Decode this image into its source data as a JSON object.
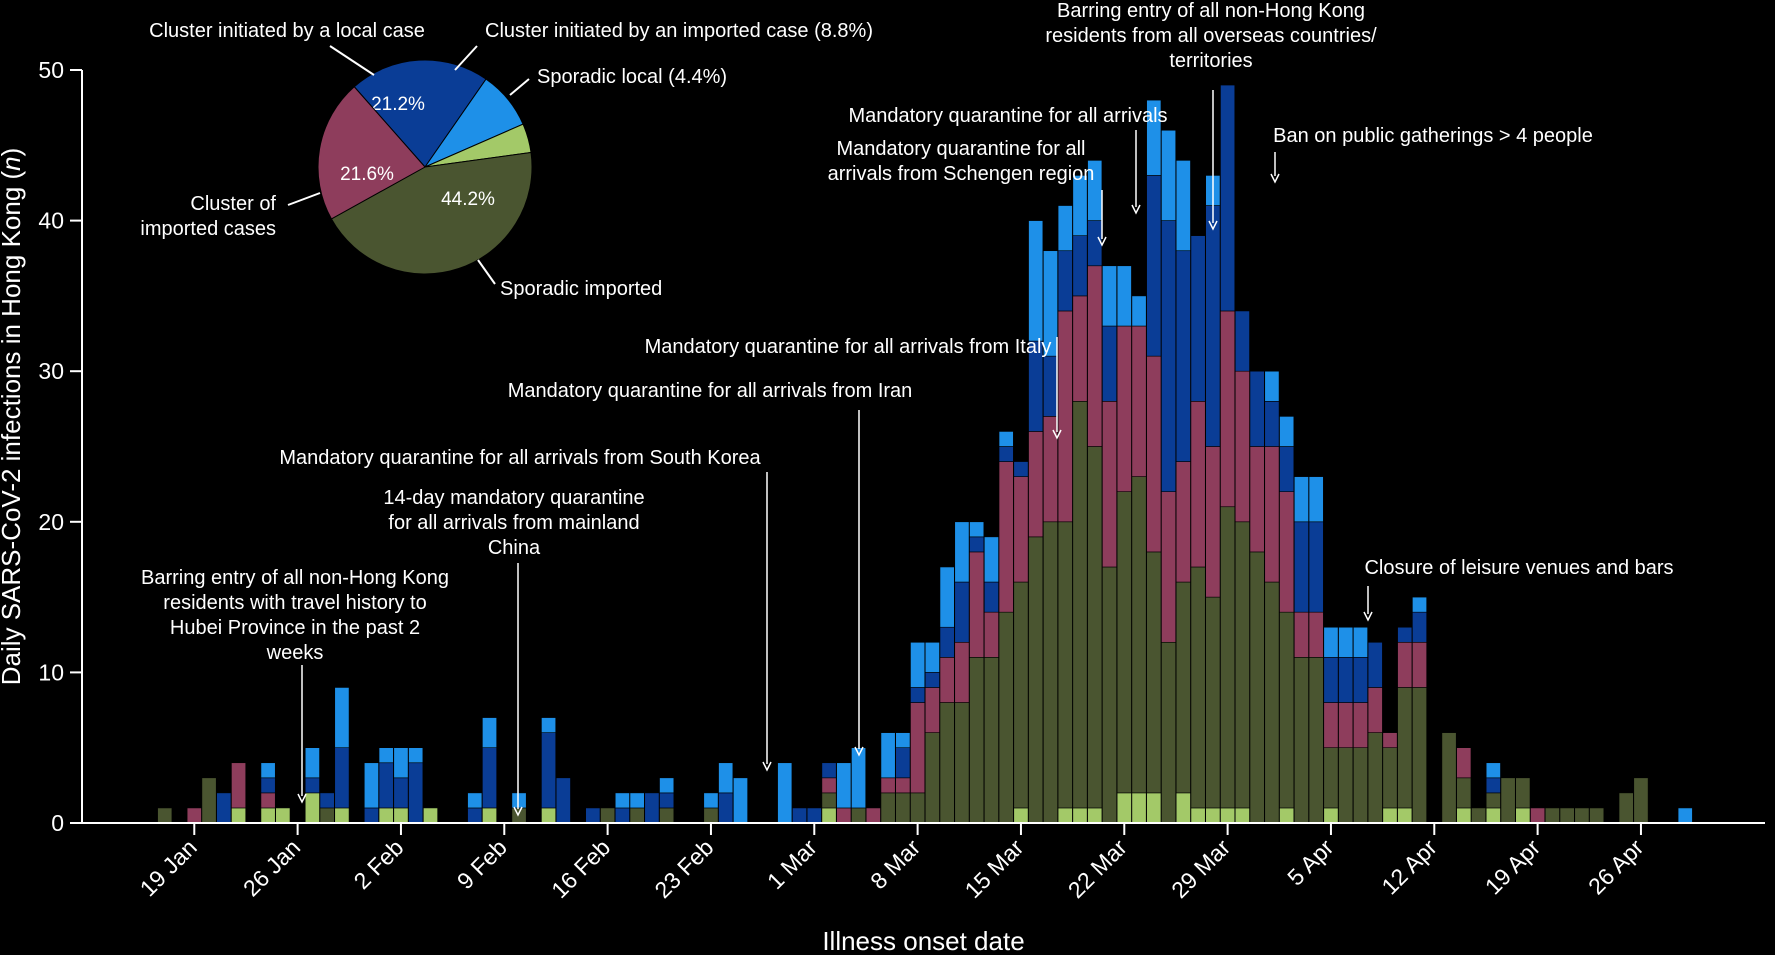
{
  "chart_data": {
    "type": "bar",
    "stacked": true,
    "xlabel": "Illness onset date",
    "ylabel_prefix": "Daily SARS-CoV-2 infections in Hong Kong (",
    "ylabel_var": "n",
    "ylabel_suffix": ")",
    "ylim": [
      0,
      50
    ],
    "yticks": [
      0,
      10,
      20,
      30,
      40,
      50
    ],
    "x_start": "2020-01-16",
    "x_end": "2020-04-30",
    "xticks": [
      {
        "date": "2020-01-19",
        "label": "19 Jan"
      },
      {
        "date": "2020-01-26",
        "label": "26 Jan"
      },
      {
        "date": "2020-02-02",
        "label": "2 Feb"
      },
      {
        "date": "2020-02-09",
        "label": "9 Feb"
      },
      {
        "date": "2020-02-16",
        "label": "16 Feb"
      },
      {
        "date": "2020-02-23",
        "label": "23 Feb"
      },
      {
        "date": "2020-03-01",
        "label": "1 Mar"
      },
      {
        "date": "2020-03-08",
        "label": "8 Mar"
      },
      {
        "date": "2020-03-15",
        "label": "15 Mar"
      },
      {
        "date": "2020-03-22",
        "label": "22 Mar"
      },
      {
        "date": "2020-03-29",
        "label": "29 Mar"
      },
      {
        "date": "2020-04-05",
        "label": "5 Apr"
      },
      {
        "date": "2020-04-12",
        "label": "12 Apr"
      },
      {
        "date": "2020-04-19",
        "label": "19 Apr"
      },
      {
        "date": "2020-04-26",
        "label": "26 Apr"
      }
    ],
    "grid": false,
    "series": [
      {
        "key": "sporadic_local",
        "color": "#a3c968"
      },
      {
        "key": "sporadic_imported",
        "color": "#4a5530"
      },
      {
        "key": "cluster_imported",
        "color": "#8e3d5c"
      },
      {
        "key": "cluster_local",
        "color": "#0a3d96"
      },
      {
        "key": "cluster_initiated_imported",
        "color": "#1e90e8"
      }
    ],
    "dates": [
      "2020-01-16",
      "2020-01-17",
      "2020-01-18",
      "2020-01-19",
      "2020-01-20",
      "2020-01-21",
      "2020-01-22",
      "2020-01-23",
      "2020-01-24",
      "2020-01-25",
      "2020-01-26",
      "2020-01-27",
      "2020-01-28",
      "2020-01-29",
      "2020-01-30",
      "2020-01-31",
      "2020-02-01",
      "2020-02-02",
      "2020-02-03",
      "2020-02-04",
      "2020-02-05",
      "2020-02-06",
      "2020-02-07",
      "2020-02-08",
      "2020-02-09",
      "2020-02-10",
      "2020-02-11",
      "2020-02-12",
      "2020-02-13",
      "2020-02-14",
      "2020-02-15",
      "2020-02-16",
      "2020-02-17",
      "2020-02-18",
      "2020-02-19",
      "2020-02-20",
      "2020-02-21",
      "2020-02-22",
      "2020-02-23",
      "2020-02-24",
      "2020-02-25",
      "2020-02-26",
      "2020-02-27",
      "2020-02-28",
      "2020-02-29",
      "2020-03-01",
      "2020-03-02",
      "2020-03-03",
      "2020-03-04",
      "2020-03-05",
      "2020-03-06",
      "2020-03-07",
      "2020-03-08",
      "2020-03-09",
      "2020-03-10",
      "2020-03-11",
      "2020-03-12",
      "2020-03-13",
      "2020-03-14",
      "2020-03-15",
      "2020-03-16",
      "2020-03-17",
      "2020-03-18",
      "2020-03-19",
      "2020-03-20",
      "2020-03-21",
      "2020-03-22",
      "2020-03-23",
      "2020-03-24",
      "2020-03-25",
      "2020-03-26",
      "2020-03-27",
      "2020-03-28",
      "2020-03-29",
      "2020-03-30",
      "2020-03-31",
      "2020-04-01",
      "2020-04-02",
      "2020-04-03",
      "2020-04-04",
      "2020-04-05",
      "2020-04-06",
      "2020-04-07",
      "2020-04-08",
      "2020-04-09",
      "2020-04-10",
      "2020-04-11",
      "2020-04-12",
      "2020-04-13",
      "2020-04-14",
      "2020-04-15",
      "2020-04-16",
      "2020-04-17",
      "2020-04-18",
      "2020-04-19",
      "2020-04-20",
      "2020-04-21",
      "2020-04-22",
      "2020-04-23",
      "2020-04-24",
      "2020-04-25",
      "2020-04-26"
    ],
    "values": [
      [
        0,
        0,
        0,
        0,
        0
      ],
      [
        0,
        1,
        0,
        0,
        0
      ],
      [
        0,
        0,
        0,
        0,
        0
      ],
      [
        0,
        0,
        1,
        0,
        0
      ],
      [
        0,
        3,
        0,
        0,
        0
      ],
      [
        0,
        0,
        0,
        2,
        0
      ],
      [
        1,
        0,
        3,
        0,
        0
      ],
      [
        0,
        0,
        0,
        0,
        0
      ],
      [
        1,
        0,
        1,
        1,
        1
      ],
      [
        1,
        0,
        0,
        0,
        0
      ],
      [
        0,
        0,
        0,
        0,
        0
      ],
      [
        2,
        0,
        0,
        1,
        2
      ],
      [
        0,
        1,
        0,
        1,
        0
      ],
      [
        1,
        0,
        0,
        4,
        4
      ],
      [
        0,
        0,
        0,
        0,
        0
      ],
      [
        0,
        0,
        0,
        1,
        3
      ],
      [
        1,
        0,
        0,
        3,
        1
      ],
      [
        1,
        0,
        0,
        2,
        2
      ],
      [
        0,
        0,
        0,
        4,
        1
      ],
      [
        1,
        0,
        0,
        0,
        0
      ],
      [
        0,
        0,
        0,
        0,
        0
      ],
      [
        0,
        0,
        0,
        0,
        0
      ],
      [
        0,
        0,
        0,
        1,
        1
      ],
      [
        1,
        0,
        0,
        4,
        2
      ],
      [
        0,
        0,
        0,
        0,
        0
      ],
      [
        0,
        1,
        0,
        0,
        1
      ],
      [
        0,
        0,
        0,
        0,
        0
      ],
      [
        1,
        0,
        0,
        5,
        1
      ],
      [
        0,
        0,
        0,
        3,
        0
      ],
      [
        0,
        0,
        0,
        0,
        0
      ],
      [
        0,
        0,
        0,
        1,
        0
      ],
      [
        0,
        1,
        0,
        0,
        0
      ],
      [
        0,
        0,
        0,
        1,
        1
      ],
      [
        0,
        1,
        0,
        0,
        1
      ],
      [
        0,
        0,
        0,
        2,
        0
      ],
      [
        0,
        1,
        0,
        1,
        1
      ],
      [
        0,
        0,
        0,
        0,
        0
      ],
      [
        0,
        0,
        0,
        0,
        0
      ],
      [
        0,
        1,
        0,
        0,
        1
      ],
      [
        0,
        0,
        0,
        2,
        2
      ],
      [
        0,
        0,
        0,
        0,
        3
      ],
      [
        0,
        0,
        0,
        0,
        0
      ],
      [
        0,
        0,
        0,
        0,
        0
      ],
      [
        0,
        0,
        0,
        0,
        4
      ],
      [
        0,
        0,
        0,
        1,
        0
      ],
      [
        0,
        0,
        0,
        1,
        0
      ],
      [
        1,
        1,
        1,
        1,
        0
      ],
      [
        0,
        0,
        1,
        0,
        3
      ],
      [
        0,
        1,
        0,
        0,
        4
      ],
      [
        0,
        0,
        1,
        0,
        0
      ],
      [
        0,
        2,
        1,
        0,
        3
      ],
      [
        0,
        2,
        1,
        2,
        1
      ],
      [
        0,
        2,
        6,
        1,
        3
      ],
      [
        0,
        6,
        3,
        1,
        2
      ],
      [
        0,
        8,
        3,
        2,
        4
      ],
      [
        0,
        8,
        4,
        4,
        4
      ],
      [
        0,
        11,
        7,
        1,
        1
      ],
      [
        0,
        11,
        3,
        2,
        3
      ],
      [
        0,
        14,
        10,
        1,
        1
      ],
      [
        1,
        15,
        7,
        1,
        0
      ],
      [
        0,
        19,
        7,
        6,
        8
      ],
      [
        0,
        20,
        7,
        4,
        7
      ],
      [
        1,
        19,
        14,
        4,
        3
      ],
      [
        1,
        27,
        7,
        4,
        4
      ],
      [
        1,
        24,
        12,
        3,
        4
      ],
      [
        0,
        17,
        11,
        5,
        4
      ],
      [
        2,
        20,
        11,
        0,
        4
      ],
      [
        2,
        21,
        10,
        0,
        2
      ],
      [
        2,
        16,
        13,
        12,
        5
      ],
      [
        0,
        12,
        10,
        18,
        6
      ],
      [
        2,
        14,
        8,
        14,
        6
      ],
      [
        1,
        16,
        11,
        11,
        0
      ],
      [
        1,
        14,
        10,
        16,
        2
      ],
      [
        1,
        20,
        13,
        15,
        0
      ],
      [
        1,
        19,
        10,
        4,
        0
      ],
      [
        0,
        18,
        7,
        5,
        0
      ],
      [
        0,
        16,
        10,
        4,
        0
      ],
      [
        0,
        13,
        8,
        5,
        2
      ],
      [
        1,
        11,
        5,
        3,
        3
      ],
      [
        0,
        11,
        3,
        6,
        3
      ],
      [
        1,
        4,
        3,
        3,
        1
      ],
      [
        0,
        5,
        0,
        0,
        2
      ],
      [
        0,
        6,
        3,
        1,
        0
      ],
      [
        1,
        4,
        1,
        0,
        0
      ],
      [
        0,
        9,
        0,
        0,
        0
      ],
      [
        0,
        6,
        0,
        0,
        0
      ],
      [
        0,
        0,
        0,
        0,
        0
      ],
      [
        0,
        4,
        1,
        0,
        0
      ],
      [
        0,
        0,
        0,
        0,
        0
      ],
      [
        0,
        2,
        0,
        0,
        0
      ],
      [
        0,
        3,
        0,
        0,
        0
      ],
      [
        0,
        1,
        0,
        0,
        0
      ],
      [
        0,
        1,
        0,
        0,
        0
      ],
      [
        0,
        0,
        0,
        0,
        0
      ],
      [
        0,
        0,
        0,
        0,
        0
      ],
      [
        0,
        0,
        0,
        0,
        0
      ],
      [
        0,
        2,
        0,
        0,
        0
      ],
      [
        0,
        3,
        0,
        0,
        0
      ],
      [
        0,
        0,
        0,
        0,
        0
      ],
      [
        0,
        0,
        0,
        0,
        0
      ],
      [
        0,
        0,
        0,
        0,
        0
      ],
      [
        0,
        0,
        0,
        0,
        0
      ]
    ],
    "overrides": [
      {
        "date": "2020-03-31",
        "values": [
          0,
          18,
          7,
          5,
          0
        ]
      },
      {
        "date": "2020-04-01",
        "values": [
          0,
          16,
          9,
          3,
          2
        ]
      },
      {
        "date": "2020-04-02",
        "values": [
          1,
          13,
          8,
          3,
          2
        ]
      },
      {
        "date": "2020-04-03",
        "values": [
          0,
          11,
          3,
          6,
          3
        ]
      },
      {
        "date": "2020-04-04",
        "values": [
          0,
          11,
          3,
          6,
          3
        ]
      },
      {
        "date": "2020-04-05",
        "values": [
          1,
          4,
          3,
          3,
          2
        ]
      },
      {
        "date": "2020-04-06",
        "values": [
          0,
          5,
          3,
          3,
          2
        ]
      },
      {
        "date": "2020-04-07",
        "values": [
          0,
          5,
          3,
          3,
          2
        ]
      },
      {
        "date": "2020-04-08",
        "values": [
          0,
          6,
          3,
          3,
          0
        ]
      },
      {
        "date": "2020-04-09",
        "values": [
          1,
          4,
          1,
          0,
          0
        ]
      },
      {
        "date": "2020-04-10",
        "values": [
          1,
          8,
          3,
          1,
          0
        ]
      },
      {
        "date": "2020-04-11",
        "values": [
          0,
          9,
          3,
          2,
          1
        ]
      },
      {
        "date": "2020-04-12",
        "values": [
          0,
          0,
          0,
          0,
          0
        ]
      },
      {
        "date": "2020-04-13",
        "values": [
          0,
          6,
          0,
          0,
          0
        ]
      },
      {
        "date": "2020-04-14",
        "values": [
          1,
          2,
          2,
          0,
          0
        ]
      },
      {
        "date": "2020-04-15",
        "values": [
          0,
          1,
          0,
          0,
          0
        ]
      },
      {
        "date": "2020-04-16",
        "values": [
          1,
          1,
          0,
          1,
          1
        ]
      },
      {
        "date": "2020-04-17",
        "values": [
          0,
          3,
          0,
          0,
          0
        ]
      },
      {
        "date": "2020-04-18",
        "values": [
          1,
          2,
          0,
          0,
          0
        ]
      },
      {
        "date": "2020-04-19",
        "values": [
          0,
          0,
          1,
          0,
          0
        ]
      },
      {
        "date": "2020-04-20",
        "values": [
          0,
          1,
          0,
          0,
          0
        ]
      },
      {
        "date": "2020-04-21",
        "values": [
          0,
          1,
          0,
          0,
          0
        ]
      },
      {
        "date": "2020-04-22",
        "values": [
          0,
          1,
          0,
          0,
          0
        ]
      },
      {
        "date": "2020-04-23",
        "values": [
          0,
          1,
          0,
          0,
          0
        ]
      },
      {
        "date": "2020-04-24",
        "values": [
          0,
          0,
          0,
          0,
          0
        ]
      },
      {
        "date": "2020-04-25",
        "values": [
          0,
          2,
          0,
          0,
          0
        ]
      },
      {
        "date": "2020-04-26",
        "values": [
          0,
          3,
          0,
          0,
          0
        ]
      },
      {
        "date": "2020-04-27",
        "values": [
          0,
          0,
          0,
          0,
          0
        ]
      },
      {
        "date": "2020-04-28",
        "values": [
          0,
          0,
          0,
          0,
          0
        ]
      },
      {
        "date": "2020-04-29",
        "values": [
          0,
          0,
          0,
          0,
          1
        ]
      }
    ],
    "pie": {
      "slices": [
        {
          "name": "Cluster initiated by a local case",
          "value": 21.2,
          "label": "21.2%",
          "color": "#0a3d96"
        },
        {
          "name": "Cluster initiated by an imported case (8.8%)",
          "value": 8.8,
          "label": "",
          "color": "#1e90e8"
        },
        {
          "name": "Sporadic local (4.4%)",
          "value": 4.4,
          "label": "",
          "color": "#a3c968"
        },
        {
          "name": "Sporadic imported",
          "value": 44.2,
          "label": "44.2%",
          "color": "#4a5530"
        },
        {
          "name": "Cluster of imported cases",
          "value": 21.6,
          "label": "21.6%",
          "color": "#8e3d5c"
        }
      ]
    },
    "annotations": [
      {
        "date": "2020-01-26",
        "value": 1,
        "lines": [
          "Barring entry of all non-Hong Kong",
          "residents with travel history to",
          "Hubei Province in the  past 2",
          "weeks"
        ]
      },
      {
        "date": "2020-02-09",
        "value": 0,
        "lines": [
          "14-day mandatory quarantine",
          "for all arrivals from mainland",
          "China"
        ]
      },
      {
        "date": "2020-02-25",
        "value": 3,
        "lines": [
          "Mandatory quarantine for all arrivals from South Korea"
        ]
      },
      {
        "date": "2020-03-02",
        "value": 4,
        "lines": [
          "Mandatory quarantine for all arrivals from Iran"
        ]
      },
      {
        "date": "2020-03-15",
        "value": 25,
        "lines": [
          "Mandatory quarantine for all arrivals from Italy"
        ]
      },
      {
        "date": "2020-03-18",
        "value": 40,
        "lines": [
          "Mandatory quarantine for all",
          "arrivals from Schengen region"
        ]
      },
      {
        "date": "2020-03-20",
        "value": 40,
        "lines": [
          "Mandatory quarantine for all arrivals"
        ]
      },
      {
        "date": "2020-03-25",
        "value": 39,
        "lines": [
          "Barring entry of all non-Hong Kong",
          "residents from all overseas countries/",
          "territories"
        ]
      },
      {
        "date": "2020-03-29",
        "value": 42,
        "lines": [
          "Ban on public gatherings > 4 people"
        ]
      },
      {
        "date": "2020-04-05",
        "value": 13,
        "lines": [
          "Closure of leisure venues and bars"
        ]
      }
    ]
  }
}
